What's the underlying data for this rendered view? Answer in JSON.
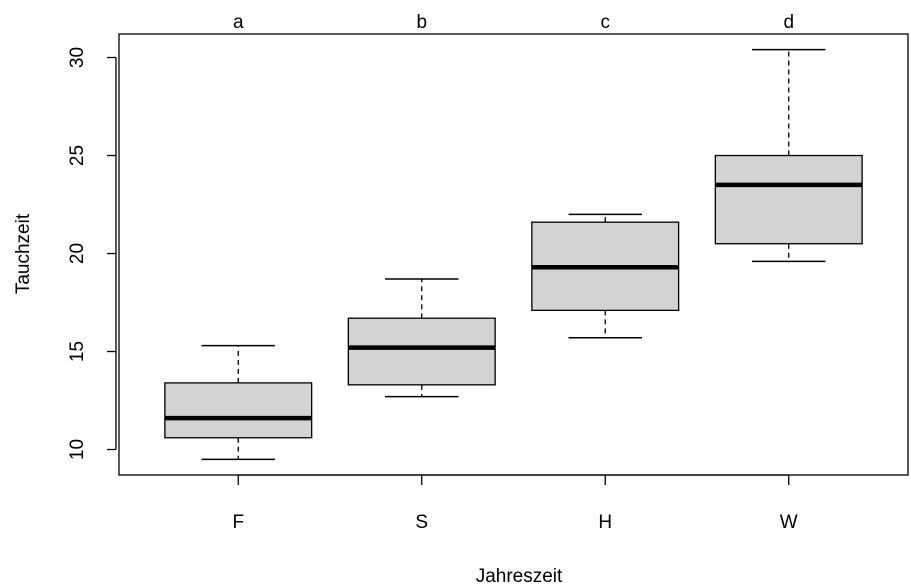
{
  "chart_data": {
    "type": "boxplot",
    "xlabel": "Jahreszeit",
    "ylabel": "Tauchzeit",
    "categories": [
      "F",
      "S",
      "H",
      "W"
    ],
    "group_letters": [
      "a",
      "b",
      "c",
      "d"
    ],
    "ylim": [
      8.7,
      31.2
    ],
    "yticks": [
      10,
      15,
      20,
      25,
      30
    ],
    "ytick_labels": [
      "10",
      "15",
      "20",
      "25",
      "30"
    ],
    "boxes": [
      {
        "category": "F",
        "whisker_low": 9.5,
        "q1": 10.6,
        "median": 11.6,
        "q3": 13.4,
        "whisker_high": 15.3
      },
      {
        "category": "S",
        "whisker_low": 12.7,
        "q1": 13.3,
        "median": 15.2,
        "q3": 16.7,
        "whisker_high": 18.7
      },
      {
        "category": "H",
        "whisker_low": 15.7,
        "q1": 17.1,
        "median": 19.3,
        "q3": 21.6,
        "whisker_high": 22.0
      },
      {
        "category": "W",
        "whisker_low": 19.6,
        "q1": 20.5,
        "median": 23.5,
        "q3": 25.0,
        "whisker_high": 30.4
      }
    ],
    "grid": false,
    "box_fill": "#d3d3d3"
  }
}
